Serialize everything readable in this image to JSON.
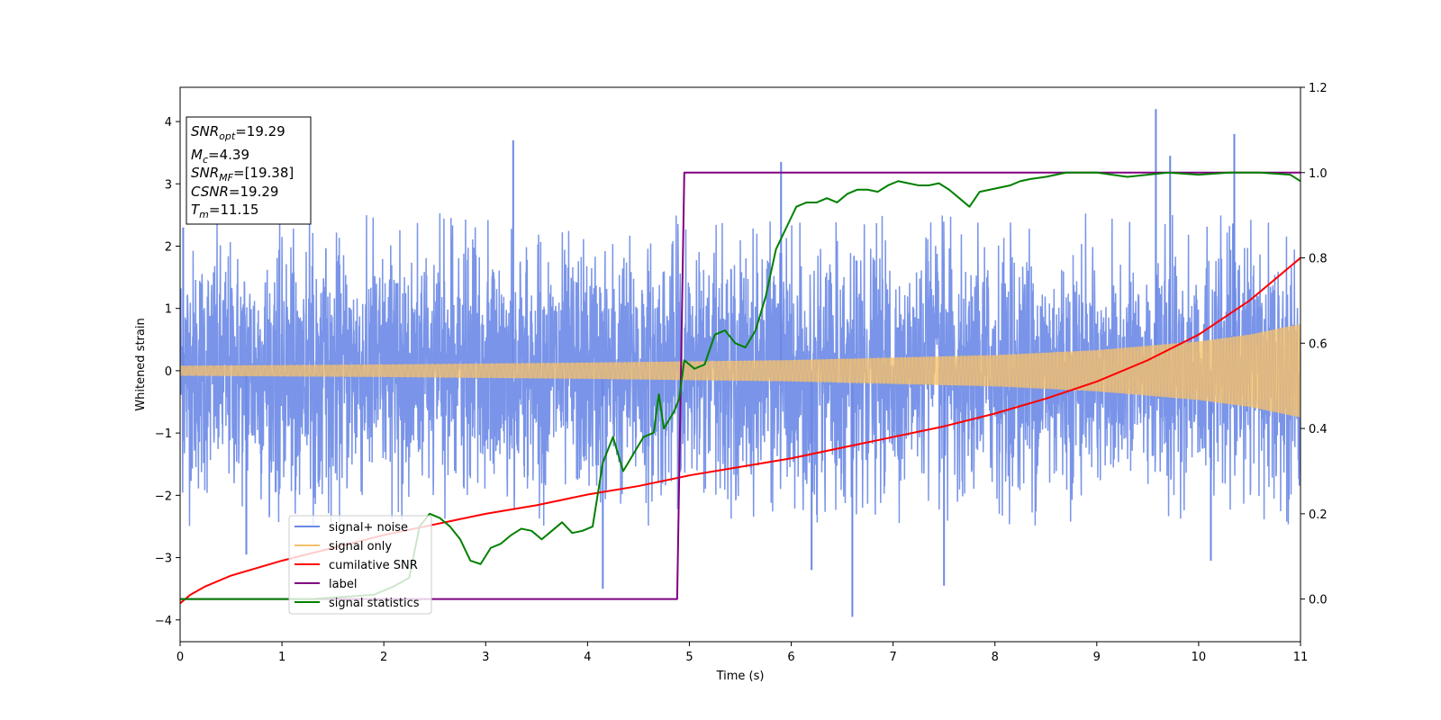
{
  "chart_data": {
    "type": "line",
    "xlabel": "Time (s)",
    "ylabel_left": "Whitened strain",
    "xlim": [
      0,
      11
    ],
    "ylim_left": [
      -4.35,
      4.55
    ],
    "ylim_right": [
      -0.1,
      1.2
    ],
    "xticks": [
      0,
      1,
      2,
      3,
      4,
      5,
      6,
      7,
      8,
      9,
      10,
      11
    ],
    "xtick_labels": [
      "0",
      "1",
      "2",
      "3",
      "4",
      "5",
      "6",
      "7",
      "8",
      "9",
      "10",
      "11"
    ],
    "yticks_left": [
      -4,
      -3,
      -2,
      -1,
      0,
      1,
      2,
      3,
      4
    ],
    "ytick_labels_left": [
      "−4",
      "−3",
      "−2",
      "−1",
      "0",
      "1",
      "2",
      "3",
      "4"
    ],
    "yticks_right": [
      0.0,
      0.2,
      0.4,
      0.6,
      0.8,
      1.0,
      1.2
    ],
    "ytick_labels_right": [
      "0.0",
      "0.2",
      "0.4",
      "0.6",
      "0.8",
      "1.0",
      "1.2"
    ],
    "grid": false,
    "legend_position": "lower-left",
    "noise": {
      "name": "signal+ noise",
      "color": "#6a88e6",
      "axis": "left",
      "description_level": "roughly unit-variance whitened noise around 0, spikes up to about 4.2 and down to about -3.9",
      "spikes": [
        {
          "x": 0.03,
          "y": 2.3
        },
        {
          "x": 0.65,
          "y": -2.95
        },
        {
          "x": 3.27,
          "y": 3.7
        },
        {
          "x": 4.15,
          "y": -3.5
        },
        {
          "x": 5.9,
          "y": 3.35
        },
        {
          "x": 6.2,
          "y": -3.2
        },
        {
          "x": 6.6,
          "y": -3.95
        },
        {
          "x": 7.5,
          "y": -3.45
        },
        {
          "x": 9.58,
          "y": 4.2
        },
        {
          "x": 9.72,
          "y": 3.45
        },
        {
          "x": 10.35,
          "y": 3.8
        },
        {
          "x": 10.12,
          "y": -3.05
        }
      ]
    },
    "signal": {
      "name": "signal only",
      "color": "#f5c16c",
      "axis": "left",
      "amplitude": [
        {
          "x": 0,
          "y": 0.08
        },
        {
          "x": 2,
          "y": 0.1
        },
        {
          "x": 4,
          "y": 0.13
        },
        {
          "x": 6,
          "y": 0.17
        },
        {
          "x": 8,
          "y": 0.25
        },
        {
          "x": 9,
          "y": 0.33
        },
        {
          "x": 10,
          "y": 0.47
        },
        {
          "x": 10.5,
          "y": 0.58
        },
        {
          "x": 11,
          "y": 0.75
        }
      ]
    },
    "series": [
      {
        "name": "cumilative SNR",
        "color": "#ff0000",
        "axis": "right",
        "points": [
          [
            0,
            -0.01
          ],
          [
            0.1,
            0.01
          ],
          [
            0.25,
            0.03
          ],
          [
            0.5,
            0.055
          ],
          [
            1,
            0.09
          ],
          [
            1.5,
            0.12
          ],
          [
            2,
            0.15
          ],
          [
            2.5,
            0.175
          ],
          [
            3,
            0.2
          ],
          [
            3.5,
            0.22
          ],
          [
            4,
            0.245
          ],
          [
            4.5,
            0.265
          ],
          [
            5,
            0.29
          ],
          [
            5.5,
            0.31
          ],
          [
            6,
            0.33
          ],
          [
            6.5,
            0.355
          ],
          [
            7,
            0.38
          ],
          [
            7.5,
            0.405
          ],
          [
            8,
            0.435
          ],
          [
            8.5,
            0.47
          ],
          [
            9,
            0.51
          ],
          [
            9.5,
            0.56
          ],
          [
            10,
            0.62
          ],
          [
            10.5,
            0.7
          ],
          [
            11,
            0.8
          ]
        ]
      },
      {
        "name": "label",
        "color": "#800080",
        "axis": "right",
        "points": [
          [
            0,
            0.0
          ],
          [
            4.88,
            0.0
          ],
          [
            4.95,
            1.0
          ],
          [
            11,
            1.0
          ]
        ]
      },
      {
        "name": "signal statistics",
        "color": "#008000",
        "axis": "right",
        "points": [
          [
            0,
            0.0
          ],
          [
            1.0,
            0.0
          ],
          [
            1.3,
            0.0
          ],
          [
            1.6,
            0.005
          ],
          [
            1.9,
            0.01
          ],
          [
            2.1,
            0.03
          ],
          [
            2.25,
            0.05
          ],
          [
            2.35,
            0.17
          ],
          [
            2.45,
            0.2
          ],
          [
            2.55,
            0.19
          ],
          [
            2.65,
            0.17
          ],
          [
            2.75,
            0.14
          ],
          [
            2.85,
            0.09
          ],
          [
            2.95,
            0.082
          ],
          [
            3.05,
            0.12
          ],
          [
            3.15,
            0.13
          ],
          [
            3.25,
            0.15
          ],
          [
            3.35,
            0.165
          ],
          [
            3.45,
            0.16
          ],
          [
            3.55,
            0.14
          ],
          [
            3.65,
            0.16
          ],
          [
            3.75,
            0.18
          ],
          [
            3.85,
            0.155
          ],
          [
            3.95,
            0.16
          ],
          [
            4.05,
            0.17
          ],
          [
            4.15,
            0.32
          ],
          [
            4.25,
            0.38
          ],
          [
            4.35,
            0.3
          ],
          [
            4.45,
            0.34
          ],
          [
            4.55,
            0.38
          ],
          [
            4.65,
            0.39
          ],
          [
            4.7,
            0.48
          ],
          [
            4.75,
            0.4
          ],
          [
            4.85,
            0.44
          ],
          [
            4.9,
            0.47
          ],
          [
            4.95,
            0.56
          ],
          [
            5.05,
            0.54
          ],
          [
            5.15,
            0.55
          ],
          [
            5.25,
            0.62
          ],
          [
            5.35,
            0.63
          ],
          [
            5.45,
            0.6
          ],
          [
            5.55,
            0.59
          ],
          [
            5.65,
            0.63
          ],
          [
            5.75,
            0.71
          ],
          [
            5.85,
            0.82
          ],
          [
            5.95,
            0.87
          ],
          [
            6.05,
            0.92
          ],
          [
            6.15,
            0.93
          ],
          [
            6.25,
            0.93
          ],
          [
            6.35,
            0.94
          ],
          [
            6.45,
            0.93
          ],
          [
            6.55,
            0.95
          ],
          [
            6.65,
            0.96
          ],
          [
            6.75,
            0.96
          ],
          [
            6.85,
            0.955
          ],
          [
            6.95,
            0.97
          ],
          [
            7.05,
            0.98
          ],
          [
            7.15,
            0.975
          ],
          [
            7.25,
            0.97
          ],
          [
            7.35,
            0.97
          ],
          [
            7.45,
            0.975
          ],
          [
            7.55,
            0.96
          ],
          [
            7.65,
            0.94
          ],
          [
            7.75,
            0.92
          ],
          [
            7.85,
            0.955
          ],
          [
            7.95,
            0.96
          ],
          [
            8.05,
            0.965
          ],
          [
            8.15,
            0.97
          ],
          [
            8.25,
            0.98
          ],
          [
            8.35,
            0.985
          ],
          [
            8.5,
            0.99
          ],
          [
            8.7,
            1.0
          ],
          [
            9.0,
            1.0
          ],
          [
            9.3,
            0.99
          ],
          [
            9.5,
            0.995
          ],
          [
            9.7,
            1.0
          ],
          [
            10.0,
            0.995
          ],
          [
            10.3,
            1.0
          ],
          [
            10.6,
            1.0
          ],
          [
            10.9,
            0.995
          ],
          [
            11,
            0.98
          ]
        ]
      }
    ],
    "legend": [
      {
        "label": "signal+ noise",
        "color": "#6a88e6"
      },
      {
        "label": "signal only",
        "color": "#f5c16c"
      },
      {
        "label": "cumilative SNR",
        "color": "#ff0000"
      },
      {
        "label": "label",
        "color": "#800080"
      },
      {
        "label": "signal statistics",
        "color": "#008000"
      }
    ],
    "annotation": {
      "lines": [
        {
          "symbol": "SNR",
          "subscript": "opt",
          "value": "=19.29"
        },
        {
          "symbol": "M",
          "subscript": "c",
          "value": "=4.39"
        },
        {
          "symbol": "SNR",
          "subscript": "MF",
          "value": "=[19.38]"
        },
        {
          "symbol": "CSNR",
          "subscript": "",
          "value": "=19.29"
        },
        {
          "symbol": "T",
          "subscript": "m",
          "value": "=11.15"
        }
      ]
    }
  }
}
